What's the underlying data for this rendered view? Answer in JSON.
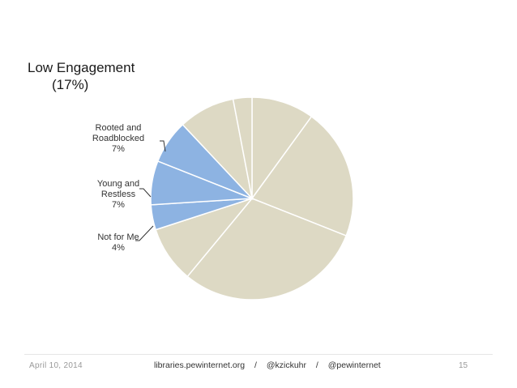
{
  "slide": {
    "title": "Low Engagement",
    "subtitle": "(17%)"
  },
  "chart_data": {
    "type": "pie",
    "colors": {
      "highlight": "#8db3e2",
      "base": "#ddd9c4",
      "border": "#ffffff",
      "leader": "#333333"
    },
    "slices": [
      {
        "value": 10,
        "highlight": false
      },
      {
        "value": 21,
        "highlight": false
      },
      {
        "value": 30,
        "highlight": false
      },
      {
        "value": 9,
        "highlight": false
      },
      {
        "value": 4,
        "highlight": true,
        "label": [
          "Not for Me",
          "4%"
        ]
      },
      {
        "value": 7,
        "highlight": true,
        "label": [
          "Young and",
          "Restless",
          "7%"
        ]
      },
      {
        "value": 7,
        "highlight": true,
        "label": [
          "Rooted and",
          "Roadblocked",
          "7%"
        ]
      },
      {
        "value": 9,
        "highlight": false
      },
      {
        "value": 3,
        "highlight": false
      }
    ]
  },
  "footer": {
    "date": "April 10, 2014",
    "site": "libraries.pewinternet.org",
    "handle1": "@kzickuhr",
    "handle2": "@pewinternet",
    "separator": "/",
    "page": "15"
  }
}
